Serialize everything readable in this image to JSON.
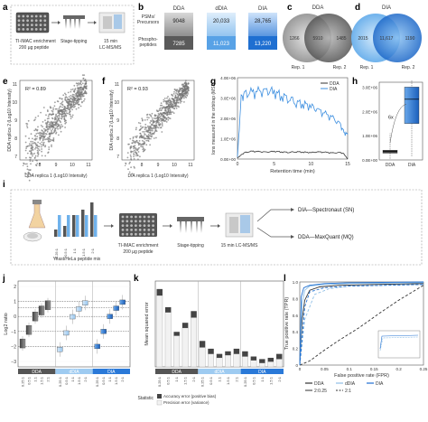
{
  "panels": {
    "a": "a",
    "b": "b",
    "c": "c",
    "d": "d",
    "e": "e",
    "f": "f",
    "g": "g",
    "h": "h",
    "i": "i",
    "j": "j",
    "k": "k",
    "l": "l"
  },
  "panel_a": {
    "step1": "TI-IMAC enrichment",
    "step1b": "200 µg peptide",
    "step2": "Stage-tipping",
    "step3": "15 min",
    "step3b": "LC-MS/MS"
  },
  "panel_b": {
    "row1a": "PSMs/",
    "row1b": "Precursors",
    "row2a": "Phospho-",
    "row2b": "peptides",
    "columns": [
      {
        "name": "DDA",
        "top": "9048",
        "bottom": "7285"
      },
      {
        "name": "dDIA",
        "top": "20,033",
        "bottom": "11,023"
      },
      {
        "name": "DIA",
        "top": "28,765",
        "bottom": "13,220"
      }
    ]
  },
  "panel_c": {
    "title": "DDA",
    "left": "1266",
    "center": "5910",
    "right": "1485",
    "rep1": "Rep. 1",
    "rep2": "Rep. 2"
  },
  "panel_d": {
    "title": "DIA",
    "left": "2015",
    "center": "11,617",
    "right": "1190",
    "rep1": "Rep. 1",
    "rep2": "Rep. 2"
  },
  "panel_e": {
    "r2": "R² = 0.89",
    "xlabel": "DDA replica 1 (Log10 Intensity)",
    "ylabel": "DDA replica 2 (Log10 Intensity)",
    "ticks": [
      "7",
      "8",
      "9",
      "10",
      "11"
    ]
  },
  "panel_f": {
    "r2": "R² = 0.93",
    "xlabel": "DIA replica 1 (Log10 Intensity)",
    "ylabel": "DIA replica 2 (Log10 Intensity)",
    "ticks": [
      "7",
      "8",
      "9",
      "10",
      "11"
    ]
  },
  "panel_i": {
    "mix": "Yeast/HeLa peptide mix",
    "ratios": [
      "0.25:1",
      "0.5:1",
      "1:1",
      "1.5:1",
      "2:1"
    ],
    "enrich": "TI-IMAC enrichment",
    "enrich2": "200 µg peptide",
    "stage": "Stage-tipping",
    "lcms": "15 min LC-MS/MS",
    "out1": "DIA—Spectronaut (SN)",
    "out2": "DDA—MaxQuant (MQ)"
  },
  "panel_j": {
    "ylabel": "Log2 ratio",
    "yticks": [
      "2",
      "1",
      "0",
      "−1",
      "−2",
      "−3"
    ],
    "groups": [
      "DDA",
      "dDIA",
      "DIA"
    ]
  },
  "panel_k": {
    "ylabel": "Mean squared error",
    "statistic_label": "Statistic",
    "legend1": "Accuracy error (positive bias)",
    "legend2": "Precision error (variance)"
  },
  "chart_data": [
    {
      "type": "line",
      "panel": "g",
      "xlabel": "Retention time (min)",
      "ylabel": "Ions measured in the orbitrap (MS2)",
      "xlim": [
        0,
        15
      ],
      "ylim": [
        0,
        4000000
      ],
      "xticks": [
        "0",
        "5",
        "10",
        "15"
      ],
      "yticks": [
        "0.0E+00",
        "1.0E+06",
        "2.0E+06",
        "3.0E+06",
        "4.0E+06"
      ],
      "legend": "top-right",
      "series": [
        {
          "name": "DDA",
          "color": "#333333",
          "x": [
            0,
            0.5,
            1,
            2,
            3,
            4,
            5,
            6,
            7,
            8,
            9,
            10,
            11,
            12,
            13,
            14,
            14.5,
            15
          ],
          "y": [
            50000,
            200000,
            320000,
            380000,
            360000,
            340000,
            380000,
            350000,
            330000,
            360000,
            340000,
            320000,
            350000,
            330000,
            300000,
            320000,
            250000,
            0
          ]
        },
        {
          "name": "DIA",
          "color": "#3d8fe0",
          "x": [
            0,
            0.5,
            1,
            2,
            3,
            4,
            5,
            6,
            7,
            8,
            9,
            10,
            11,
            12,
            13,
            14,
            14.5,
            15
          ],
          "y": [
            100000,
            3000000,
            3200000,
            3250000,
            3300000,
            3350000,
            3300000,
            3100000,
            3000000,
            2800000,
            2700000,
            2600000,
            2400000,
            2200000,
            2000000,
            1700000,
            1300000,
            1200000
          ]
        }
      ]
    },
    {
      "type": "box",
      "panel": "h",
      "categories": [
        "DDA",
        "DIA"
      ],
      "ylim": [
        0,
        3200000
      ],
      "yticks": [
        "0.0E+00",
        "1.0E+06",
        "2.0E+06",
        "3.0E+06"
      ],
      "annotation": "6x",
      "boxes": [
        {
          "name": "DDA",
          "q1": 280000,
          "median": 360000,
          "q3": 400000,
          "whisker_low": 50000,
          "whisker_high": 1100000
        },
        {
          "name": "DIA",
          "q1": 1500000,
          "median": 2500000,
          "q3": 3000000,
          "whisker_low": 150000,
          "whisker_high": 3300000
        }
      ]
    },
    {
      "type": "bar",
      "panel": "k",
      "categories": [
        "0.25:1",
        "0.5:1",
        "1:1",
        "1.5:1",
        "2:1",
        "0.25:1",
        "0.5:1",
        "1:1",
        "1.5:1",
        "2:1",
        "0.25:1",
        "0.5:1",
        "1:1",
        "1.5:1",
        "2:1"
      ],
      "groups": [
        "DDA",
        "dDIA",
        "DIA"
      ],
      "series": [
        {
          "name": "Accuracy error (positive bias)",
          "values": [
            0.02,
            0.01,
            0.0,
            0.01,
            0.02,
            0.02,
            0.01,
            0.0,
            0.0,
            0.01,
            0.01,
            0.0,
            0.0,
            0.0,
            0.01
          ]
        },
        {
          "name": "Precision error (variance)",
          "values": [
            0.55,
            0.42,
            0.24,
            0.3,
            0.38,
            0.15,
            0.1,
            0.07,
            0.09,
            0.1,
            0.08,
            0.05,
            0.03,
            0.04,
            0.06
          ]
        }
      ]
    },
    {
      "type": "line",
      "panel": "l",
      "xlabel": "False positive rate (FPR)",
      "ylabel": "True positive rate (TPR)",
      "xlim": [
        0,
        0.25
      ],
      "ylim": [
        0,
        1.0
      ],
      "xticks": [
        "0",
        "0.05",
        "0.1",
        "0.15",
        "0.2",
        "0.25"
      ],
      "yticks": [
        "0",
        "0.2",
        "0.4",
        "0.6",
        "0.8",
        "1.0"
      ],
      "legend_items": [
        "DDA",
        "dDIA",
        "DIA",
        "2:0.25",
        "2:1"
      ],
      "series": [
        {
          "name": "DDA 2:0.25",
          "color": "#333333",
          "dash": "",
          "x": [
            0,
            0.005,
            0.01,
            0.02,
            0.04,
            0.08,
            0.15,
            0.25
          ],
          "y": [
            0,
            0.55,
            0.78,
            0.9,
            0.94,
            0.96,
            0.97,
            0.98
          ]
        },
        {
          "name": "DDA 2:1",
          "color": "#333333",
          "dash": "3,2",
          "x": [
            0,
            0.02,
            0.05,
            0.08,
            0.12,
            0.16,
            0.2,
            0.25
          ],
          "y": [
            0,
            0.05,
            0.18,
            0.3,
            0.45,
            0.62,
            0.78,
            0.96
          ]
        },
        {
          "name": "dDIA 2:0.25",
          "color": "#8fbfe6",
          "dash": "",
          "x": [
            0,
            0.005,
            0.01,
            0.02,
            0.05,
            0.1,
            0.25
          ],
          "y": [
            0,
            0.75,
            0.9,
            0.95,
            0.97,
            0.98,
            0.99
          ]
        },
        {
          "name": "DIA 2:0.25",
          "color": "#1f6fd1",
          "dash": "",
          "x": [
            0,
            0.003,
            0.008,
            0.02,
            0.05,
            0.1,
            0.25
          ],
          "y": [
            0,
            0.82,
            0.93,
            0.96,
            0.98,
            0.99,
            1.0
          ]
        },
        {
          "name": "dDIA 2:1",
          "color": "#8fbfe6",
          "dash": "3,2",
          "x": [
            0,
            0.01,
            0.03,
            0.06,
            0.1,
            0.25
          ],
          "y": [
            0,
            0.55,
            0.85,
            0.92,
            0.95,
            0.97
          ]
        },
        {
          "name": "DIA 2:1",
          "color": "#1f6fd1",
          "dash": "3,2",
          "x": [
            0,
            0.01,
            0.02,
            0.05,
            0.1,
            0.25
          ],
          "y": [
            0,
            0.7,
            0.88,
            0.93,
            0.95,
            0.97
          ]
        }
      ]
    }
  ],
  "colors": {
    "dda": "#333333",
    "ddia": "#8fbfe6",
    "dia": "#1f6fd1",
    "venn_gray": "#9a9a9a",
    "venn_dark": "#5a5a5a"
  }
}
